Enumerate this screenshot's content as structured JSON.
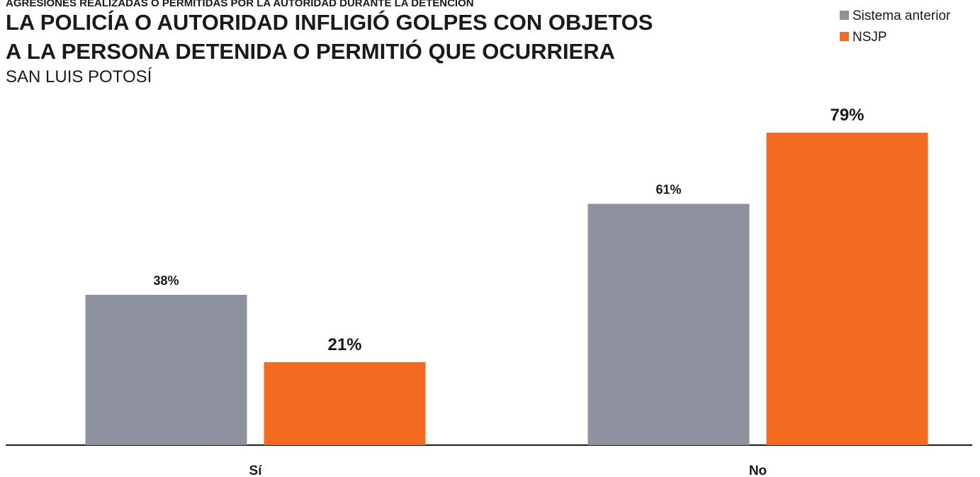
{
  "chart_data": {
    "type": "bar",
    "supertitle": "AGRESIONES REALIZADAS O PERMITIDAS POR LA AUTORIDAD DURANTE LA DETENCIÓN",
    "title": [
      "LA POLICÍA O AUTORIDAD INFLIGIÓ GOLPES CON OBJETOS",
      "A LA PERSONA DETENIDA O PERMITIÓ QUE OCURRIERA"
    ],
    "subtitle": "SAN LUIS POTOSÍ",
    "categories": [
      "Sí",
      "No"
    ],
    "series": [
      {
        "name": "Sistema anterior",
        "color": "#8e929e",
        "values": [
          38,
          61
        ],
        "value_labels": [
          "38%",
          "61%"
        ]
      },
      {
        "name": "NSJP",
        "color": "#f26b21",
        "values": [
          21,
          79
        ],
        "value_labels": [
          "21%",
          "79%"
        ]
      }
    ],
    "ylim": [
      0,
      100
    ],
    "legend": "top-right"
  }
}
